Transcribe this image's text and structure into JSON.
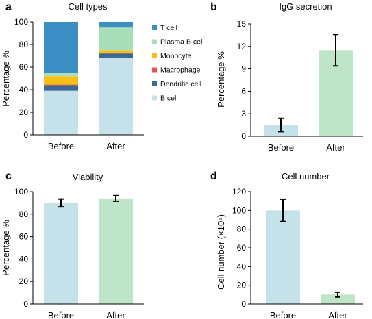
{
  "chart_data": [
    {
      "panel_label": "a",
      "type": "bar",
      "stacked": true,
      "title": "Cell types",
      "xlabel": "",
      "ylabel": "Percentage %",
      "ylim": [
        0,
        100
      ],
      "yticks": [
        0,
        20,
        40,
        60,
        80,
        100
      ],
      "categories": [
        "Before",
        "After"
      ],
      "legend_placement": "right",
      "series": [
        {
          "name": "B cell",
          "color": "#c5e1ea",
          "values": [
            39,
            68
          ]
        },
        {
          "name": "Dendritic cell",
          "color": "#3d6a94",
          "values": [
            5,
            4
          ]
        },
        {
          "name": "Macrophage",
          "color": "#f04e4e",
          "values": [
            0.5,
            0.5
          ]
        },
        {
          "name": "Monocyte",
          "color": "#f7c016",
          "values": [
            7.5,
            2.5
          ]
        },
        {
          "name": "Plasma B cell",
          "color": "#a9dfb8",
          "values": [
            3,
            20
          ]
        },
        {
          "name": "T cell",
          "color": "#3b8fc4",
          "values": [
            45,
            5
          ]
        }
      ],
      "legend_order": [
        "T cell",
        "Plasma B cell",
        "Monocyte",
        "Macrophage",
        "Dendritic cell",
        "B cell"
      ]
    },
    {
      "panel_label": "b",
      "type": "bar",
      "title": "IgG secretion",
      "xlabel": "",
      "ylabel": "Percentage %",
      "ylim": [
        0,
        15
      ],
      "yticks": [
        0,
        3,
        6,
        9,
        12,
        15
      ],
      "categories": [
        "Before",
        "After"
      ],
      "colors": [
        "#c5e1ea",
        "#bfe5c8"
      ],
      "values": [
        1.5,
        11.5
      ],
      "errors": [
        0.9,
        2.1
      ]
    },
    {
      "panel_label": "c",
      "type": "bar",
      "title": "Viability",
      "xlabel": "",
      "ylabel": "Percentage %",
      "ylim": [
        0,
        100
      ],
      "yticks": [
        0,
        20,
        40,
        60,
        80,
        100
      ],
      "categories": [
        "Before",
        "After"
      ],
      "colors": [
        "#c5e1ea",
        "#bfe5c8"
      ],
      "values": [
        90,
        94
      ],
      "errors": [
        3.5,
        2.5
      ]
    },
    {
      "panel_label": "d",
      "type": "bar",
      "title": "Cell number",
      "xlabel": "",
      "ylabel": "Cell number (×10⁵)",
      "ylim": [
        0,
        120
      ],
      "yticks": [
        0,
        20,
        40,
        60,
        80,
        100,
        120
      ],
      "categories": [
        "Before",
        "After"
      ],
      "colors": [
        "#c5e1ea",
        "#bfe5c8"
      ],
      "values": [
        100,
        10
      ],
      "errors": [
        12,
        2.5
      ]
    }
  ]
}
